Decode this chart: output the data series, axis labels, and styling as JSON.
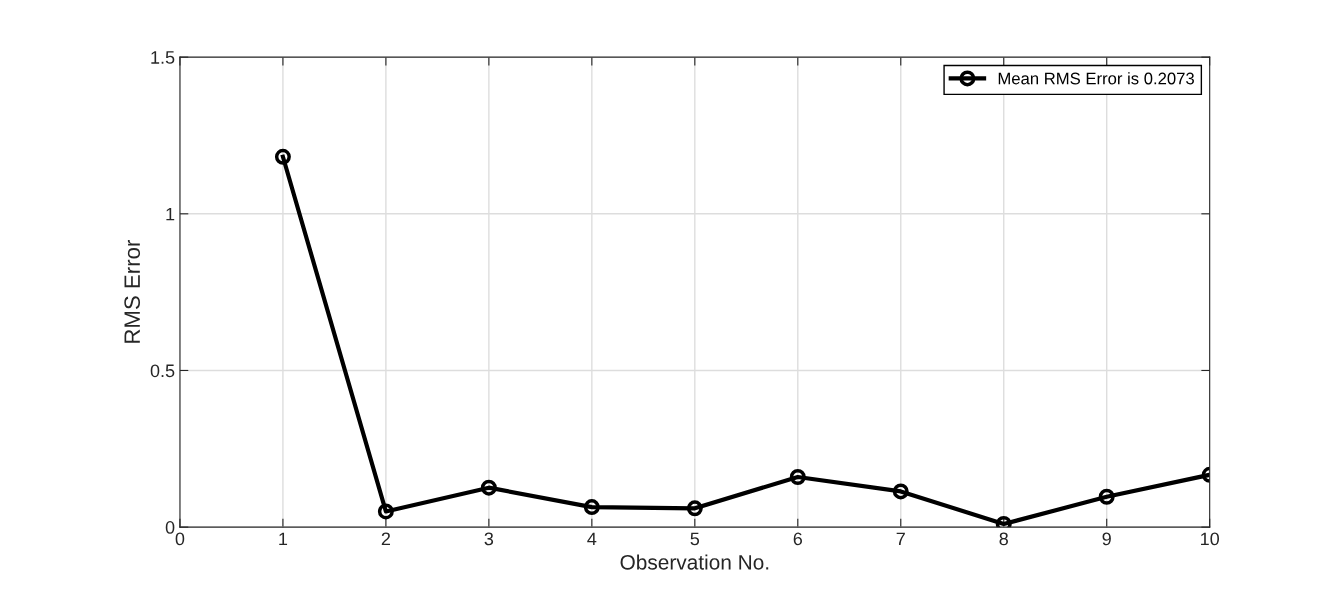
{
  "chart_data": {
    "type": "line",
    "xlabel": "Observation No.",
    "ylabel": "RMS Error",
    "x": [
      1,
      2,
      3,
      4,
      5,
      6,
      7,
      8,
      9,
      10
    ],
    "series": [
      {
        "name": "Mean RMS Error is 0.2073",
        "color": "#000000",
        "values": [
          1.182,
          0.05,
          0.126,
          0.064,
          0.06,
          0.16,
          0.114,
          0.01,
          0.097,
          0.167
        ]
      }
    ],
    "xlim": [
      0,
      10
    ],
    "xticks": [
      0,
      1,
      2,
      3,
      4,
      5,
      6,
      7,
      8,
      9,
      10
    ],
    "ylim": [
      0,
      1.5
    ],
    "yticks": [
      0,
      0.5,
      1,
      1.5
    ],
    "grid": true,
    "legend": "top right",
    "marker": "circle",
    "line_style": "solid"
  }
}
